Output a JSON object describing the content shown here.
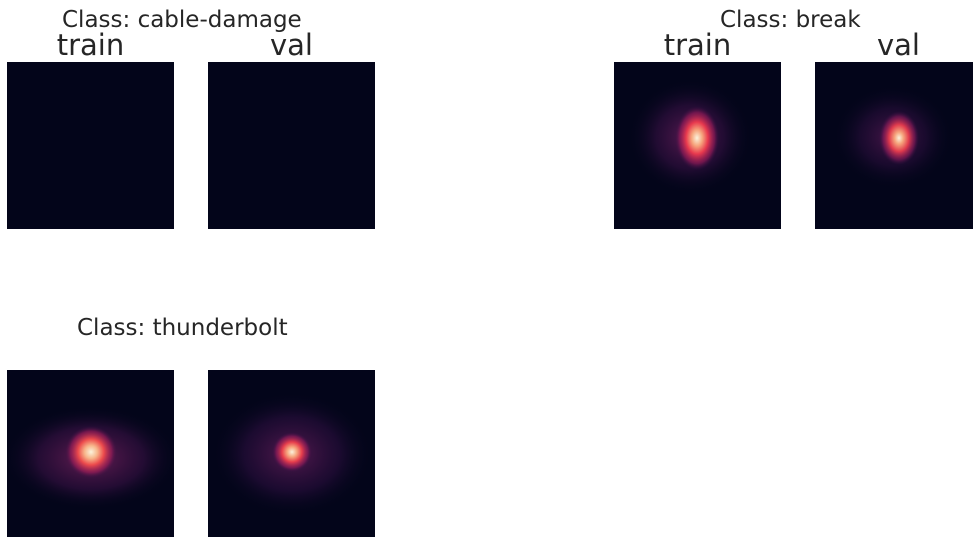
{
  "colors": {
    "background": "#03051a",
    "colormap": "rocket"
  },
  "chart_data": [
    {
      "type": "heatmap",
      "title": "Class: cable-damage",
      "panels": [
        {
          "label": "train",
          "intensity": 0
        },
        {
          "label": "val",
          "intensity": 0
        }
      ]
    },
    {
      "type": "heatmap",
      "title": "Class: break",
      "panels": [
        {
          "label": "train",
          "intensity": 0.95
        },
        {
          "label": "val",
          "intensity": 0.8
        }
      ]
    },
    {
      "type": "heatmap",
      "title": "Class: thunderbolt",
      "panels": [
        {
          "label": "",
          "intensity": 1
        },
        {
          "label": "",
          "intensity": 0.9
        }
      ]
    }
  ]
}
